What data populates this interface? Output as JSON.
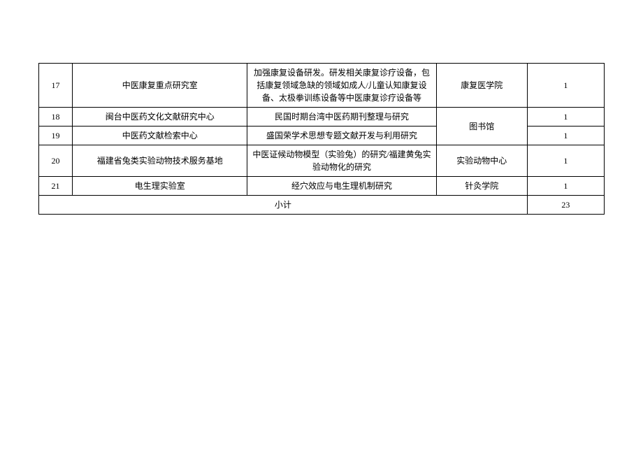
{
  "table": {
    "rows": [
      {
        "no": "17",
        "name": "中医康复重点研究室",
        "desc": "加强康复设备研发。研发相关康复诊疗设备，包括康复领域急缺的领域如成人/儿童认知康复设备、太极拳训练设备等中医康复诊疗设备等",
        "dept": "康复医学院",
        "count": "1"
      },
      {
        "no": "18",
        "name": "闽台中医药文化文献研究中心",
        "desc": "民国时期台湾中医药期刊整理与研究",
        "dept": "图书馆",
        "count": "1"
      },
      {
        "no": "19",
        "name": "中医药文献检索中心",
        "desc": "盛国荣学术思想专题文献开发与利用研究",
        "dept": null,
        "count": "1"
      },
      {
        "no": "20",
        "name": "福建省兔类实验动物技术服务基地",
        "desc": "中医证候动物模型（实验兔）的研究/福建黄兔实验动物化的研究",
        "dept": "实验动物中心",
        "count": "1"
      },
      {
        "no": "21",
        "name": "电生理实验室",
        "desc": "经穴效应与电生理机制研究",
        "dept": "针灸学院",
        "count": "1"
      }
    ],
    "subtotal_label": "小计",
    "subtotal_value": "23"
  },
  "style": {
    "font_size": 12,
    "border_color": "#000000",
    "background": "#ffffff",
    "text_color": "#000000"
  }
}
